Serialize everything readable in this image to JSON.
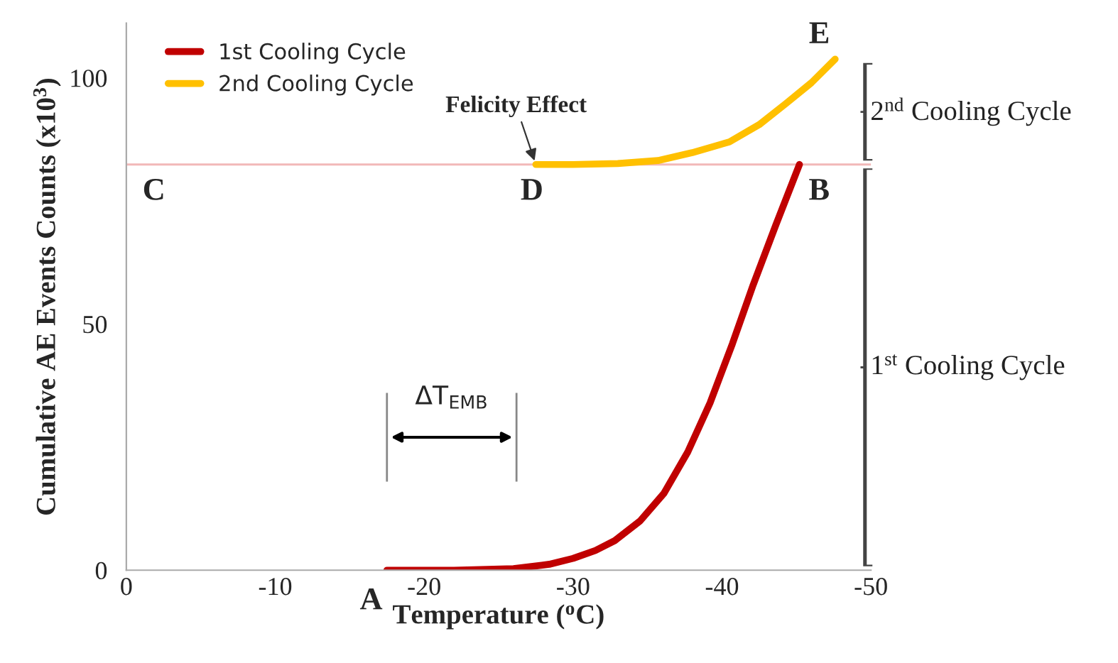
{
  "chart_data": {
    "type": "line",
    "xlabel": "Temperature ($^{o}$C)",
    "ylabel": "Cumulative AE Events Counts (x10$^{3}$)",
    "xlim": [
      0,
      -50
    ],
    "xticks": [
      0,
      -10,
      -20,
      -30,
      -40,
      -50
    ],
    "ylim": [
      0,
      111.1
    ],
    "yticks": [
      0,
      50,
      100
    ],
    "legend": "top left",
    "grid": false,
    "marker": "none",
    "line_style": "solid",
    "series": [
      {
        "name": "1st Cooling Cycle",
        "color": "#c00000",
        "x": [
          -17.5,
          -22,
          -26,
          -28.4,
          -30,
          -31.5,
          -32.8,
          -34.5,
          -36.1,
          -37.7,
          -39.2,
          -40.7,
          -42.1,
          -43.6,
          -45.2
        ],
        "values": [
          0,
          0,
          0.3,
          1.2,
          2.4,
          4,
          6,
          10,
          15.6,
          24,
          34,
          46,
          58,
          70,
          82.4
        ]
      },
      {
        "name": "2nd Cooling Cycle",
        "color": "#ffc000",
        "x": [
          -27.5,
          -30,
          -33,
          -35.7,
          -38,
          -40.5,
          -42.5,
          -44.3,
          -46,
          -47.6
        ],
        "values": [
          82.4,
          82.4,
          82.6,
          83.2,
          84.8,
          87,
          90.5,
          94.8,
          99,
          103.8
        ]
      }
    ],
    "ref_lines": [
      {
        "axis": "y",
        "value": 82.4,
        "color": "#f2b8b8"
      }
    ],
    "annotations": [
      "1$^{st}$ Cooling Cycle",
      "2$^{nd}$ Cooling Cycle",
      "ΔT$_{EMB}$",
      {
        "text": "A",
        "x": -17.5,
        "y": 0
      },
      {
        "text": "B",
        "x": -45.2,
        "y": 82.4
      },
      {
        "text": "C",
        "x": 0,
        "y": 82.4
      },
      {
        "text": "D",
        "x": -27.5,
        "y": 82.4
      },
      {
        "text": "E",
        "x": -47.6,
        "y": 103.8
      },
      {
        "text": "Felicity Effect",
        "x": -27.5,
        "y": 82.4
      }
    ]
  }
}
